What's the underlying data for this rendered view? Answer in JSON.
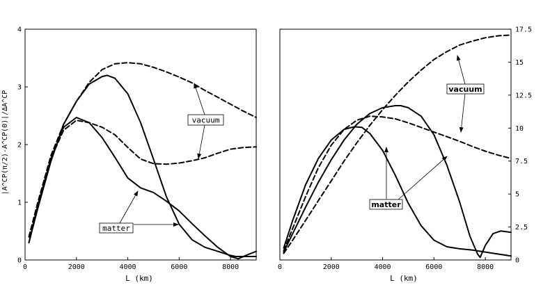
{
  "chart_data": [
    {
      "type": "line",
      "panel": "left",
      "xlabel": "L (km)",
      "ylabel": "|A^CP(π/2)-A^CP(0)|/ΔA^CP",
      "xlim": [
        0,
        9000
      ],
      "ylim": [
        0,
        4
      ],
      "xticks": [
        0,
        2000,
        4000,
        6000,
        8000
      ],
      "xtick_labels": [
        "0",
        "2000",
        "4000",
        "6000",
        "8000"
      ],
      "yticks": [
        0,
        1,
        2,
        3,
        4
      ],
      "ytick_labels": [
        "0",
        "1",
        "2",
        "3",
        "4"
      ],
      "annotations": [
        {
          "text": "vacuum",
          "bold": false
        },
        {
          "text": "matter",
          "bold": false
        }
      ],
      "series": [
        {
          "name": "vacuum (upper)",
          "style": "dashed",
          "x": [
            150,
            500,
            1000,
            1500,
            2000,
            2500,
            3000,
            3500,
            4000,
            4500,
            5000,
            5500,
            6000,
            6500,
            7000,
            7500,
            8000,
            8500,
            9000
          ],
          "y": [
            0.4,
            1.0,
            1.8,
            2.35,
            2.75,
            3.08,
            3.3,
            3.4,
            3.42,
            3.4,
            3.34,
            3.26,
            3.17,
            3.07,
            2.94,
            2.82,
            2.7,
            2.58,
            2.47
          ]
        },
        {
          "name": "vacuum (lower)",
          "style": "dashed",
          "x": [
            150,
            500,
            1000,
            1500,
            2000,
            2500,
            3000,
            3500,
            4000,
            4500,
            5000,
            5500,
            6000,
            6500,
            7000,
            7500,
            8000,
            8500,
            9000
          ],
          "y": [
            0.4,
            1.0,
            1.75,
            2.25,
            2.42,
            2.38,
            2.3,
            2.17,
            1.95,
            1.75,
            1.67,
            1.66,
            1.68,
            1.72,
            1.77,
            1.85,
            1.92,
            1.95,
            1.96
          ]
        },
        {
          "name": "matter (upper)",
          "style": "solid",
          "x": [
            150,
            500,
            1000,
            1500,
            2000,
            2500,
            3000,
            3200,
            3500,
            4000,
            4500,
            5000,
            5500,
            6000,
            6500,
            7000,
            7500,
            8000,
            8200,
            8500,
            9000
          ],
          "y": [
            0.3,
            0.9,
            1.7,
            2.35,
            2.75,
            3.05,
            3.18,
            3.2,
            3.15,
            2.88,
            2.38,
            1.75,
            1.1,
            0.62,
            0.35,
            0.22,
            0.15,
            0.08,
            0.06,
            0.06,
            0.06
          ]
        },
        {
          "name": "matter (lower)",
          "style": "solid",
          "x": [
            150,
            500,
            1000,
            1500,
            2000,
            2500,
            3000,
            3500,
            4000,
            4500,
            5000,
            5500,
            6000,
            6500,
            7000,
            7500,
            8000,
            8300,
            8600,
            9000
          ],
          "y": [
            0.3,
            0.95,
            1.75,
            2.3,
            2.47,
            2.38,
            2.12,
            1.78,
            1.42,
            1.25,
            1.17,
            1.02,
            0.85,
            0.63,
            0.42,
            0.22,
            0.06,
            0.02,
            0.08,
            0.15
          ]
        }
      ]
    },
    {
      "type": "line",
      "panel": "right",
      "xlabel": "L (km)",
      "ylabel": "",
      "xlim": [
        0,
        9000
      ],
      "ylim": [
        0,
        17.5
      ],
      "xticks": [
        0,
        2000,
        4000,
        6000,
        8000
      ],
      "xtick_labels": [
        "0",
        "2000",
        "4000",
        "6000",
        "8000"
      ],
      "yticks": [
        0,
        2.5,
        5,
        7.5,
        10,
        12.5,
        15,
        17.5
      ],
      "ytick_labels": [
        "0",
        "2.5",
        "5",
        "7.5",
        "10",
        "12.5",
        "15",
        "17.5"
      ],
      "annotations": [
        {
          "text": "vacuum",
          "bold": true
        },
        {
          "text": "matter",
          "bold": true
        }
      ],
      "series": [
        {
          "name": "vacuum (upper)",
          "style": "dashed",
          "x": [
            150,
            500,
            1000,
            1500,
            2000,
            2500,
            3000,
            3500,
            4000,
            4500,
            5000,
            5500,
            6000,
            6500,
            7000,
            7500,
            8000,
            8500,
            9000
          ],
          "y": [
            0.5,
            1.5,
            3.0,
            4.5,
            6.0,
            7.5,
            8.9,
            10.2,
            11.4,
            12.5,
            13.5,
            14.4,
            15.2,
            15.8,
            16.3,
            16.6,
            16.85,
            17.0,
            17.05
          ]
        },
        {
          "name": "vacuum (lower)",
          "style": "dashed",
          "x": [
            150,
            500,
            1000,
            1500,
            2000,
            2500,
            3000,
            3500,
            4000,
            4500,
            5000,
            5500,
            6000,
            6500,
            7000,
            7500,
            8000,
            8500,
            9000
          ],
          "y": [
            0.7,
            2.4,
            4.8,
            7.0,
            8.7,
            9.9,
            10.6,
            10.9,
            10.85,
            10.7,
            10.4,
            10.05,
            9.7,
            9.35,
            9.0,
            8.6,
            8.25,
            7.95,
            7.7
          ]
        },
        {
          "name": "matter (upper)",
          "style": "solid",
          "x": [
            150,
            500,
            1000,
            1500,
            2000,
            2500,
            3000,
            3500,
            4000,
            4500,
            4700,
            5000,
            5500,
            6000,
            6500,
            7000,
            7400,
            7700,
            7800,
            8000,
            8300,
            8600,
            9000
          ],
          "y": [
            0.6,
            2.0,
            4.0,
            5.9,
            7.6,
            9.1,
            10.3,
            11.1,
            11.55,
            11.7,
            11.7,
            11.55,
            10.9,
            9.5,
            7.2,
            4.4,
            1.8,
            0.45,
            0.2,
            1.1,
            2.0,
            2.2,
            2.1
          ]
        },
        {
          "name": "matter (lower)",
          "style": "solid",
          "x": [
            150,
            500,
            1000,
            1500,
            2000,
            2500,
            2900,
            3200,
            3500,
            4000,
            4500,
            5000,
            5500,
            6000,
            6500,
            7000,
            7500,
            8000,
            8500,
            9000
          ],
          "y": [
            0.9,
            3.0,
            5.7,
            7.7,
            9.1,
            9.9,
            10.1,
            10.05,
            9.6,
            8.3,
            6.4,
            4.3,
            2.6,
            1.5,
            1.0,
            0.85,
            0.75,
            0.6,
            0.45,
            0.3
          ]
        }
      ]
    }
  ]
}
